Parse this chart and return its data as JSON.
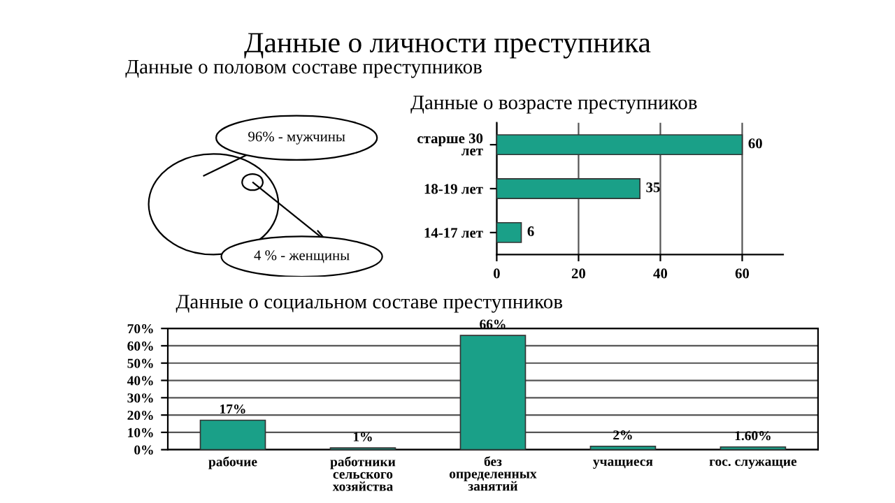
{
  "chart_data": [
    {
      "type": "other",
      "title": "Данные о личности преступника"
    },
    {
      "type": "other",
      "title": "Данные о половом составе преступников",
      "annotations": [
        "96% - мужчины",
        "4 % - женщины"
      ]
    },
    {
      "type": "bar",
      "orientation": "horizontal",
      "title": "Данные о возрасте преступников",
      "categories": [
        "старше 30 лет",
        "18-19 лет",
        "14-17 лет"
      ],
      "values": [
        60,
        35,
        6
      ],
      "color": "#1aa088",
      "xlim": [
        0,
        70
      ],
      "xticks": [
        0,
        20,
        40,
        60
      ],
      "grid": "x",
      "data_labels": true
    },
    {
      "type": "bar",
      "title": "Данные о социальном составе преступников",
      "categories": [
        "рабочие",
        "работники сельского хозяйства",
        "без определенных занятий",
        "учащиеся",
        "гос. служащие"
      ],
      "values": [
        17,
        1,
        66,
        2,
        1.6
      ],
      "value_labels": [
        "17%",
        "1%",
        "66%",
        "2%",
        "1.60%"
      ],
      "color": "#1aa088",
      "ylim": [
        0,
        70
      ],
      "yticks": [
        {
          "value": 0,
          "label": "0%"
        },
        {
          "value": 10,
          "label": "10%"
        },
        {
          "value": 20,
          "label": "20%"
        },
        {
          "value": 30,
          "label": "30%"
        },
        {
          "value": 40,
          "label": "40%"
        },
        {
          "value": 50,
          "label": "50%"
        },
        {
          "value": 60,
          "label": "60%"
        },
        {
          "value": 70,
          "label": "70%"
        }
      ],
      "grid": "y"
    }
  ]
}
